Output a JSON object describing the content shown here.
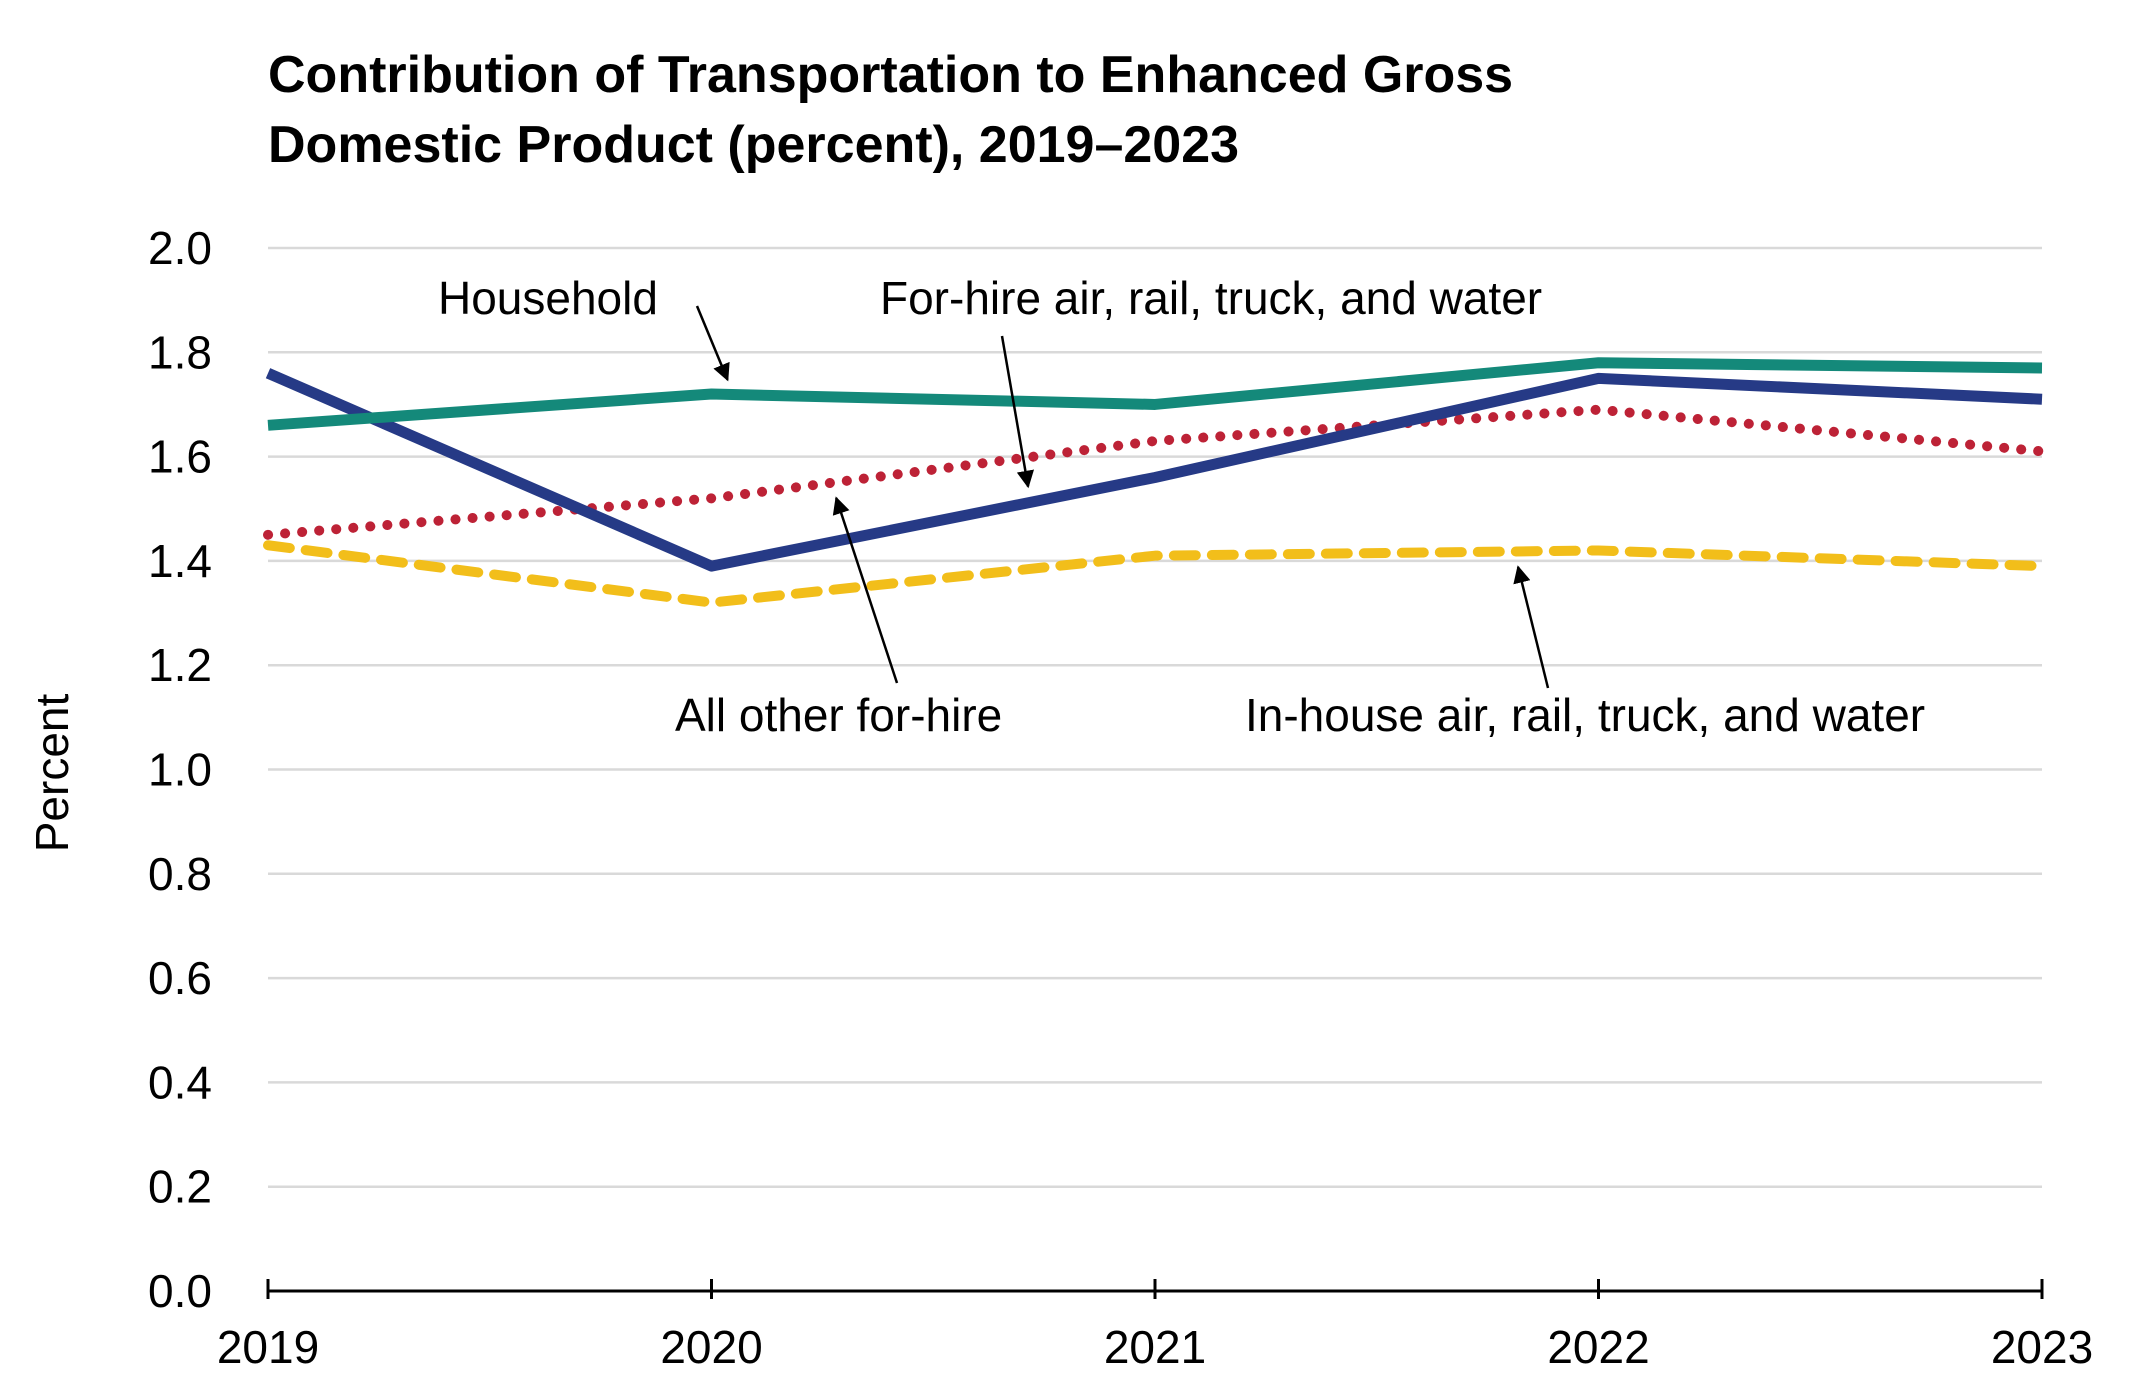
{
  "chart_data": {
    "type": "line",
    "title": "Contribution of Transportation to Enhanced Gross Domestic Product (percent), 2019–2023",
    "title_lines": [
      "Contribution of Transportation to Enhanced Gross",
      "Domestic Product (percent), 2019–2023"
    ],
    "xlabel": "",
    "ylabel": "Percent",
    "x": [
      "2019",
      "2020",
      "2021",
      "2022",
      "2023"
    ],
    "ylim": [
      0,
      2.0
    ],
    "yticks": [
      "0.0",
      "0.2",
      "0.4",
      "0.6",
      "0.8",
      "1.0",
      "1.2",
      "1.4",
      "1.6",
      "1.8",
      "2.0"
    ],
    "grid": true,
    "series": [
      {
        "name": "Household",
        "values": [
          1.66,
          1.72,
          1.7,
          1.78,
          1.77
        ],
        "color": "#14897a",
        "style": "solid"
      },
      {
        "name": "For-hire air, rail, truck, and water",
        "values": [
          1.76,
          1.39,
          1.56,
          1.75,
          1.71
        ],
        "color": "#263a86",
        "style": "solid"
      },
      {
        "name": "All other for-hire",
        "values": [
          1.45,
          1.52,
          1.63,
          1.69,
          1.61
        ],
        "color": "#bd2236",
        "style": "dotted"
      },
      {
        "name": "In-house air, rail, truck, and water",
        "values": [
          1.43,
          1.32,
          1.41,
          1.42,
          1.39
        ],
        "color": "#f2be1a",
        "style": "dashed"
      }
    ],
    "annotations": [
      {
        "label": "Household",
        "series": "Household"
      },
      {
        "label": "For-hire air, rail, truck, and water",
        "series": "For-hire air, rail, truck, and water"
      },
      {
        "label": "All other for-hire",
        "series": "All other for-hire"
      },
      {
        "label": "In-house air, rail, truck, and water",
        "series": "In-house air, rail, truck, and water"
      }
    ]
  }
}
